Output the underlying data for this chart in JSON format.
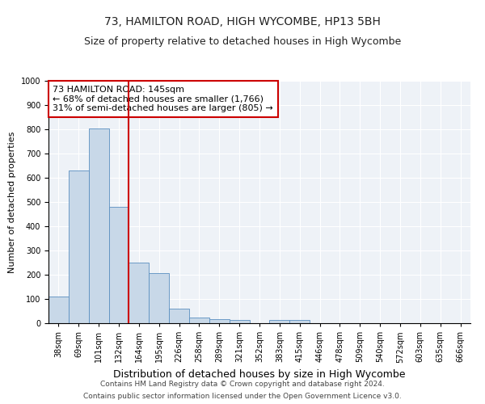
{
  "title": "73, HAMILTON ROAD, HIGH WYCOMBE, HP13 5BH",
  "subtitle": "Size of property relative to detached houses in High Wycombe",
  "xlabel": "Distribution of detached houses by size in High Wycombe",
  "ylabel": "Number of detached properties",
  "categories": [
    "38sqm",
    "69sqm",
    "101sqm",
    "132sqm",
    "164sqm",
    "195sqm",
    "226sqm",
    "258sqm",
    "289sqm",
    "321sqm",
    "352sqm",
    "383sqm",
    "415sqm",
    "446sqm",
    "478sqm",
    "509sqm",
    "540sqm",
    "572sqm",
    "603sqm",
    "635sqm",
    "666sqm"
  ],
  "values": [
    110,
    630,
    805,
    480,
    250,
    207,
    60,
    25,
    18,
    12,
    0,
    12,
    12,
    0,
    0,
    0,
    0,
    0,
    0,
    0,
    0
  ],
  "bar_color": "#c8d8e8",
  "bar_edgecolor": "#5a8fc0",
  "vline_x_index": 3.5,
  "vline_color": "#cc0000",
  "ylim": [
    0,
    1000
  ],
  "yticks": [
    0,
    100,
    200,
    300,
    400,
    500,
    600,
    700,
    800,
    900,
    1000
  ],
  "annotation_text": "73 HAMILTON ROAD: 145sqm\n← 68% of detached houses are smaller (1,766)\n31% of semi-detached houses are larger (805) →",
  "annotation_box_color": "#ffffff",
  "annotation_box_edgecolor": "#cc0000",
  "footer_line1": "Contains HM Land Registry data © Crown copyright and database right 2024.",
  "footer_line2": "Contains public sector information licensed under the Open Government Licence v3.0.",
  "background_color": "#ffffff",
  "plot_background": "#eef2f7",
  "grid_color": "#ffffff",
  "title_fontsize": 10,
  "subtitle_fontsize": 9,
  "annotation_fontsize": 8,
  "ylabel_fontsize": 8,
  "xlabel_fontsize": 9,
  "footer_fontsize": 6.5,
  "tick_fontsize": 7
}
